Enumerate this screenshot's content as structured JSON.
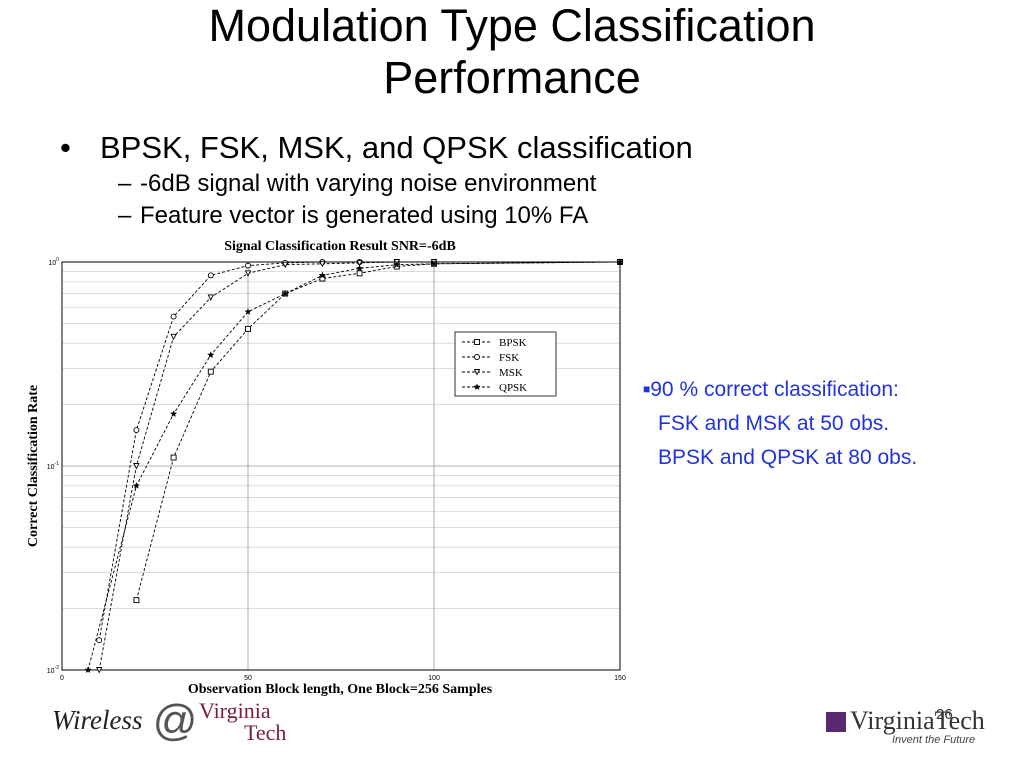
{
  "slide": {
    "title_line1": "Modulation Type Classification",
    "title_line2": "Performance",
    "bullet": "BPSK, FSK, MSK, and QPSK classification",
    "sub_bullets": [
      "-6dB signal with varying noise environment",
      "Feature vector is generated using 10% FA"
    ],
    "note_line1": "90 % correct classification:",
    "note_line2": "FSK and MSK at 50 obs.",
    "note_line3": "BPSK and QPSK at 80 obs.",
    "note_color": "#2233dd",
    "footer_left_word": "Wireless",
    "footer_left_at": "@",
    "footer_left_vt_line1": "Virginia",
    "footer_left_vt_line2": "Tech",
    "footer_right_logo": "VirginiaTech",
    "footer_right_tagline": "Invent the Future",
    "page_number": "26"
  },
  "chart_data": {
    "type": "line",
    "title": "Signal Classification Result SNR=-6dB",
    "xlabel": "Observation Block length, One Block=256 Samples",
    "ylabel": "Correct Classification Rate",
    "xlim": [
      0,
      150
    ],
    "ylim": [
      0.01,
      1
    ],
    "yscale": "log",
    "grid": true,
    "legend_position": "center-right",
    "x_ticks": [
      "0",
      "50",
      "100",
      "150"
    ],
    "y_ticks": [
      {
        "base": "10",
        "exp": "0"
      },
      {
        "base": "10",
        "exp": "-1"
      },
      {
        "base": "10",
        "exp": "-2"
      }
    ],
    "series": [
      {
        "name": "BPSK",
        "marker": "square",
        "points": [
          [
            20,
            0.022
          ],
          [
            30,
            0.11
          ],
          [
            40,
            0.29
          ],
          [
            50,
            0.47
          ],
          [
            60,
            0.7
          ],
          [
            70,
            0.83
          ],
          [
            80,
            0.88
          ],
          [
            90,
            0.95
          ],
          [
            100,
            0.98
          ],
          [
            150,
            1.0
          ]
        ]
      },
      {
        "name": "FSK",
        "marker": "circle",
        "points": [
          [
            10,
            0.014
          ],
          [
            20,
            0.15
          ],
          [
            30,
            0.54
          ],
          [
            40,
            0.86
          ],
          [
            50,
            0.96
          ],
          [
            60,
            0.99
          ],
          [
            70,
            1.0
          ],
          [
            80,
            1.0
          ],
          [
            90,
            1.0
          ],
          [
            100,
            1.0
          ],
          [
            150,
            1.0
          ]
        ]
      },
      {
        "name": "MSK",
        "marker": "triangle-down",
        "points": [
          [
            10,
            0.01
          ],
          [
            20,
            0.1
          ],
          [
            30,
            0.43
          ],
          [
            40,
            0.67
          ],
          [
            50,
            0.88
          ],
          [
            60,
            0.97
          ],
          [
            70,
            0.98
          ],
          [
            80,
            0.99
          ],
          [
            90,
            1.0
          ],
          [
            100,
            1.0
          ],
          [
            150,
            1.0
          ]
        ]
      },
      {
        "name": "QPSK",
        "marker": "star",
        "points": [
          [
            7,
            0.01
          ],
          [
            20,
            0.08
          ],
          [
            30,
            0.18
          ],
          [
            40,
            0.35
          ],
          [
            50,
            0.57
          ],
          [
            60,
            0.7
          ],
          [
            70,
            0.86
          ],
          [
            80,
            0.93
          ],
          [
            90,
            0.97
          ],
          [
            100,
            0.98
          ],
          [
            150,
            1.0
          ]
        ]
      }
    ]
  }
}
